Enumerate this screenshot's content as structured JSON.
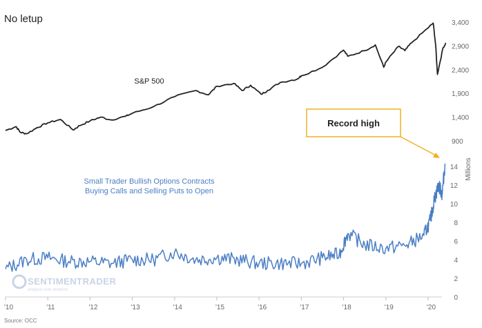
{
  "chart_data": [
    {
      "type": "line",
      "title": "No letup",
      "series": [
        {
          "name": "S&P 500",
          "color": "#222222",
          "x": [
            2010.0,
            2010.25,
            2010.35,
            2010.5,
            2010.75,
            2011.0,
            2011.3,
            2011.6,
            2011.75,
            2012.0,
            2012.25,
            2012.5,
            2012.85,
            2013.0,
            2013.5,
            2014.0,
            2014.5,
            2014.8,
            2015.0,
            2015.4,
            2015.6,
            2015.8,
            2016.05,
            2016.2,
            2016.5,
            2016.9,
            2017.0,
            2017.5,
            2018.0,
            2018.1,
            2018.5,
            2018.75,
            2018.95,
            2019.0,
            2019.3,
            2019.45,
            2019.6,
            2020.0,
            2020.12,
            2020.18,
            2020.22,
            2020.35,
            2020.42
          ],
          "values": [
            1120,
            1200,
            1080,
            1050,
            1180,
            1280,
            1350,
            1130,
            1220,
            1320,
            1400,
            1340,
            1420,
            1480,
            1620,
            1830,
            1960,
            1870,
            2050,
            2110,
            1960,
            2070,
            1880,
            1960,
            2130,
            2200,
            2270,
            2450,
            2810,
            2680,
            2800,
            2920,
            2450,
            2560,
            2890,
            2800,
            2960,
            3280,
            3380,
            2900,
            2300,
            2850,
            2960
          ]
        }
      ],
      "ylim": [
        900,
        3400
      ],
      "y_ticks": [
        "900",
        "1,400",
        "1,900",
        "2,400",
        "2,900",
        "3,400"
      ],
      "annotations": [
        "S&P 500"
      ]
    },
    {
      "type": "line",
      "series": [
        {
          "name": "Small Trader Bullish Options Contracts Buying Calls and Selling Puts to Open",
          "color": "#4a7ec4",
          "x": [
            2010.0,
            2010.5,
            2011.0,
            2011.5,
            2012.0,
            2012.5,
            2013.0,
            2013.5,
            2014.0,
            2014.5,
            2015.0,
            2015.5,
            2016.0,
            2016.5,
            2017.0,
            2017.5,
            2017.9,
            2018.1,
            2018.5,
            2019.0,
            2019.5,
            2019.9,
            2020.05,
            2020.15,
            2020.25,
            2020.33,
            2020.4
          ],
          "values": [
            3.0,
            4.0,
            4.2,
            3.8,
            3.8,
            3.6,
            4.0,
            4.0,
            4.8,
            4.0,
            4.2,
            4.0,
            3.6,
            3.6,
            3.6,
            4.2,
            4.6,
            6.8,
            5.6,
            5.2,
            5.6,
            6.6,
            8.2,
            10.5,
            12.0,
            11.0,
            14.3
          ]
        }
      ],
      "ylim": [
        0,
        14
      ],
      "ylabel": "Millions",
      "y_ticks": [
        "0",
        "2",
        "4",
        "6",
        "8",
        "10",
        "12",
        "14"
      ],
      "annotations": [
        "Record high"
      ]
    }
  ],
  "x_ticks": [
    "'10",
    "'11",
    "'12",
    "'13",
    "'14",
    "'15",
    "'16",
    "'17",
    "'18",
    "'19",
    "'20"
  ],
  "source": "Source: OCC",
  "watermark": {
    "brand": "SENTIMENTRADER",
    "tagline": "analysis over emotion"
  },
  "labels": {
    "sp": "S&P 500",
    "opt_line1": "Small Trader Bullish Options Contracts",
    "opt_line2": "Buying Calls and Selling Puts to Open",
    "callout": "Record high"
  }
}
